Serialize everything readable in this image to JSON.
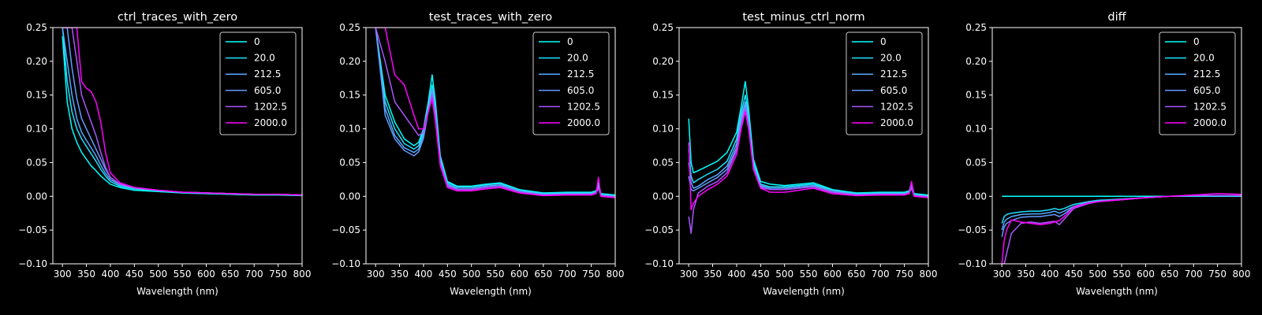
{
  "figure": {
    "background": "#000000",
    "foreground": "#ffffff"
  },
  "legend_labels": [
    "0",
    "20.0",
    "212.5",
    "605.0",
    "1202.5",
    "2000.0"
  ],
  "series_colors": [
    "#00ffff",
    "#1ee1ff",
    "#55aaff",
    "#6699ff",
    "#aa55ff",
    "#ff00ff"
  ],
  "chart_data": [
    {
      "type": "line",
      "title": "ctrl_traces_with_zero",
      "xlabel": "Wavelength (nm)",
      "ylabel": "",
      "xlim": [
        280,
        800
      ],
      "ylim": [
        -0.1,
        0.25
      ],
      "xticks": [
        300,
        350,
        400,
        450,
        500,
        550,
        600,
        650,
        700,
        750,
        800
      ],
      "yticks": [
        -0.1,
        -0.05,
        0.0,
        0.05,
        0.1,
        0.15,
        0.2,
        0.25
      ],
      "ytick_labels": [
        "−0.10",
        "−0.05",
        "0.00",
        "0.05",
        "0.10",
        "0.15",
        "0.20",
        "0.25"
      ],
      "legend": "top-right",
      "grid": false,
      "x": [
        300,
        310,
        320,
        330,
        340,
        350,
        360,
        370,
        380,
        390,
        400,
        420,
        450,
        500,
        550,
        600,
        650,
        700,
        750,
        800
      ],
      "series": [
        {
          "name": "0",
          "values": [
            0.237,
            0.14,
            0.1,
            0.08,
            0.065,
            0.055,
            0.045,
            0.038,
            0.03,
            0.024,
            0.018,
            0.013,
            0.009,
            0.007,
            0.005,
            0.004,
            0.003,
            0.002,
            0.002,
            0.001
          ]
        },
        {
          "name": "20.0",
          "values": [
            0.25,
            0.17,
            0.125,
            0.1,
            0.085,
            0.074,
            0.063,
            0.052,
            0.04,
            0.03,
            0.022,
            0.015,
            0.011,
            0.008,
            0.006,
            0.005,
            0.004,
            0.003,
            0.003,
            0.002
          ]
        },
        {
          "name": "212.5",
          "values": [
            0.25,
            0.2,
            0.15,
            0.115,
            0.095,
            0.083,
            0.072,
            0.06,
            0.046,
            0.034,
            0.025,
            0.017,
            0.012,
            0.009,
            0.006,
            0.005,
            0.004,
            0.003,
            0.003,
            0.002
          ]
        },
        {
          "name": "605.0",
          "values": [
            0.25,
            0.25,
            0.19,
            0.145,
            0.115,
            0.1,
            0.085,
            0.07,
            0.055,
            0.04,
            0.028,
            0.018,
            0.013,
            0.009,
            0.006,
            0.005,
            0.004,
            0.003,
            0.003,
            0.002
          ]
        },
        {
          "name": "1202.5",
          "values": [
            0.25,
            0.25,
            0.25,
            0.2,
            0.15,
            0.13,
            0.11,
            0.09,
            0.065,
            0.043,
            0.028,
            0.018,
            0.013,
            0.009,
            0.006,
            0.005,
            0.004,
            0.003,
            0.003,
            0.002
          ]
        },
        {
          "name": "2000.0",
          "values": [
            0.25,
            0.25,
            0.25,
            0.25,
            0.17,
            0.16,
            0.155,
            0.14,
            0.11,
            0.065,
            0.035,
            0.02,
            0.013,
            0.009,
            0.006,
            0.005,
            0.004,
            0.003,
            0.003,
            0.002
          ]
        }
      ]
    },
    {
      "type": "line",
      "title": "test_traces_with_zero",
      "xlabel": "Wavelength (nm)",
      "ylabel": "",
      "xlim": [
        280,
        800
      ],
      "ylim": [
        -0.1,
        0.25
      ],
      "xticks": [
        300,
        350,
        400,
        450,
        500,
        550,
        600,
        650,
        700,
        750,
        800
      ],
      "yticks": [
        -0.1,
        -0.05,
        0.0,
        0.05,
        0.1,
        0.15,
        0.2,
        0.25
      ],
      "ytick_labels": [
        "−0.10",
        "−0.05",
        "0.00",
        "0.05",
        "0.10",
        "0.15",
        "0.20",
        "0.25"
      ],
      "legend": "top-right",
      "grid": false,
      "x": [
        300,
        320,
        340,
        360,
        380,
        390,
        400,
        410,
        418,
        425,
        435,
        450,
        470,
        500,
        530,
        560,
        600,
        650,
        700,
        750,
        760,
        765,
        770,
        800
      ],
      "series": [
        {
          "name": "0",
          "values": [
            0.25,
            0.15,
            0.11,
            0.085,
            0.075,
            0.08,
            0.1,
            0.14,
            0.18,
            0.14,
            0.06,
            0.022,
            0.015,
            0.015,
            0.018,
            0.02,
            0.01,
            0.005,
            0.006,
            0.006,
            0.008,
            0.02,
            0.004,
            0.002
          ]
        },
        {
          "name": "20.0",
          "values": [
            0.25,
            0.14,
            0.1,
            0.078,
            0.07,
            0.075,
            0.095,
            0.135,
            0.165,
            0.13,
            0.055,
            0.02,
            0.014,
            0.014,
            0.017,
            0.019,
            0.009,
            0.004,
            0.005,
            0.005,
            0.007,
            0.018,
            0.003,
            0.001
          ]
        },
        {
          "name": "212.5",
          "values": [
            0.25,
            0.13,
            0.09,
            0.072,
            0.065,
            0.07,
            0.09,
            0.13,
            0.16,
            0.125,
            0.052,
            0.018,
            0.012,
            0.012,
            0.015,
            0.017,
            0.008,
            0.003,
            0.004,
            0.004,
            0.006,
            0.015,
            0.002,
            0.0
          ]
        },
        {
          "name": "605.0",
          "values": [
            0.25,
            0.12,
            0.085,
            0.068,
            0.06,
            0.066,
            0.086,
            0.126,
            0.155,
            0.12,
            0.05,
            0.016,
            0.01,
            0.01,
            0.013,
            0.015,
            0.006,
            0.002,
            0.003,
            0.003,
            0.005,
            0.012,
            0.001,
            -0.001
          ]
        },
        {
          "name": "1202.5",
          "values": [
            0.25,
            0.2,
            0.14,
            0.12,
            0.1,
            0.09,
            0.095,
            0.125,
            0.15,
            0.115,
            0.048,
            0.015,
            0.01,
            0.01,
            0.013,
            0.015,
            0.006,
            0.002,
            0.003,
            0.003,
            0.005,
            0.012,
            0.001,
            -0.001
          ]
        },
        {
          "name": "2000.0",
          "values": [
            0.25,
            0.25,
            0.18,
            0.165,
            0.12,
            0.1,
            0.1,
            0.125,
            0.145,
            0.11,
            0.045,
            0.013,
            0.008,
            0.008,
            0.011,
            0.013,
            0.005,
            0.001,
            0.002,
            0.002,
            0.004,
            0.028,
            0.0,
            -0.002
          ]
        }
      ]
    },
    {
      "type": "line",
      "title": "test_minus_ctrl_norm",
      "xlabel": "Wavelength (nm)",
      "ylabel": "",
      "xlim": [
        280,
        800
      ],
      "ylim": [
        -0.1,
        0.25
      ],
      "xticks": [
        300,
        350,
        400,
        450,
        500,
        550,
        600,
        650,
        700,
        750,
        800
      ],
      "yticks": [
        -0.1,
        -0.05,
        0.0,
        0.05,
        0.1,
        0.15,
        0.2,
        0.25
      ],
      "ytick_labels": [
        "−0.10",
        "−0.05",
        "0.00",
        "0.05",
        "0.10",
        "0.15",
        "0.20",
        "0.25"
      ],
      "legend": "top-right",
      "grid": false,
      "x": [
        300,
        305,
        310,
        320,
        340,
        360,
        380,
        400,
        410,
        418,
        425,
        435,
        450,
        470,
        500,
        530,
        560,
        600,
        650,
        700,
        750,
        760,
        765,
        770,
        800
      ],
      "series": [
        {
          "name": "0",
          "values": [
            0.115,
            0.05,
            0.035,
            0.038,
            0.045,
            0.052,
            0.065,
            0.095,
            0.135,
            0.17,
            0.13,
            0.055,
            0.022,
            0.018,
            0.016,
            0.018,
            0.02,
            0.01,
            0.005,
            0.006,
            0.006,
            0.008,
            0.02,
            0.004,
            0.002
          ]
        },
        {
          "name": "20.0",
          "values": [
            0.07,
            0.03,
            0.02,
            0.025,
            0.033,
            0.04,
            0.052,
            0.085,
            0.125,
            0.15,
            0.12,
            0.05,
            0.018,
            0.014,
            0.014,
            0.016,
            0.018,
            0.009,
            0.004,
            0.005,
            0.005,
            0.007,
            0.018,
            0.003,
            0.001
          ]
        },
        {
          "name": "212.5",
          "values": [
            0.05,
            0.02,
            0.012,
            0.015,
            0.025,
            0.032,
            0.045,
            0.078,
            0.118,
            0.14,
            0.112,
            0.046,
            0.016,
            0.012,
            0.012,
            0.014,
            0.016,
            0.008,
            0.003,
            0.004,
            0.004,
            0.006,
            0.015,
            0.002,
            0.0
          ]
        },
        {
          "name": "605.0",
          "values": [
            0.03,
            0.01,
            0.008,
            0.012,
            0.02,
            0.028,
            0.04,
            0.072,
            0.112,
            0.135,
            0.108,
            0.044,
            0.014,
            0.01,
            0.01,
            0.012,
            0.014,
            0.006,
            0.002,
            0.003,
            0.003,
            0.005,
            0.012,
            0.001,
            -0.001
          ]
        },
        {
          "name": "1202.5",
          "values": [
            -0.03,
            -0.055,
            -0.02,
            0.005,
            0.015,
            0.022,
            0.035,
            0.068,
            0.108,
            0.13,
            0.104,
            0.042,
            0.013,
            0.01,
            0.01,
            0.012,
            0.014,
            0.006,
            0.002,
            0.003,
            0.003,
            0.005,
            0.012,
            0.001,
            -0.001
          ]
        },
        {
          "name": "2000.0",
          "values": [
            0.08,
            -0.02,
            -0.01,
            0.0,
            0.01,
            0.018,
            0.03,
            0.062,
            0.102,
            0.125,
            0.1,
            0.04,
            0.012,
            0.006,
            0.006,
            0.009,
            0.012,
            0.004,
            0.001,
            0.002,
            0.002,
            0.004,
            0.022,
            0.0,
            -0.002
          ]
        }
      ]
    },
    {
      "type": "line",
      "title": "diff",
      "xlabel": "Wavelength (nm)",
      "ylabel": "",
      "xlim": [
        280,
        800
      ],
      "ylim": [
        -0.1,
        0.25
      ],
      "xticks": [
        300,
        350,
        400,
        450,
        500,
        550,
        600,
        650,
        700,
        750,
        800
      ],
      "yticks": [
        -0.1,
        -0.05,
        0.0,
        0.05,
        0.1,
        0.15,
        0.2,
        0.25
      ],
      "ytick_labels": [
        "−0.10",
        "−0.05",
        "0.00",
        "0.05",
        "0.10",
        "0.15",
        "0.20",
        "0.25"
      ],
      "legend": "top-right",
      "grid": false,
      "x": [
        300,
        305,
        310,
        320,
        340,
        360,
        380,
        400,
        410,
        420,
        430,
        450,
        480,
        500,
        550,
        600,
        650,
        700,
        750,
        800
      ],
      "series": [
        {
          "name": "0",
          "values": [
            0,
            0,
            0,
            0,
            0,
            0,
            0,
            0,
            0,
            0,
            0,
            0,
            0,
            0,
            0,
            0,
            0,
            0,
            0,
            0
          ]
        },
        {
          "name": "20.0",
          "values": [
            -0.04,
            -0.03,
            -0.027,
            -0.025,
            -0.023,
            -0.022,
            -0.022,
            -0.02,
            -0.018,
            -0.02,
            -0.018,
            -0.012,
            -0.008,
            -0.006,
            -0.004,
            -0.002,
            0.0,
            0.001,
            0.001,
            0.001
          ]
        },
        {
          "name": "212.5",
          "values": [
            -0.05,
            -0.038,
            -0.034,
            -0.03,
            -0.027,
            -0.026,
            -0.026,
            -0.024,
            -0.022,
            -0.025,
            -0.022,
            -0.015,
            -0.009,
            -0.007,
            -0.004,
            -0.002,
            0.0,
            0.001,
            0.001,
            0.001
          ]
        },
        {
          "name": "605.0",
          "values": [
            -0.06,
            -0.045,
            -0.04,
            -0.036,
            -0.031,
            -0.03,
            -0.03,
            -0.028,
            -0.027,
            -0.03,
            -0.026,
            -0.016,
            -0.01,
            -0.008,
            -0.005,
            -0.002,
            0.0,
            0.001,
            0.001,
            0.001
          ]
        },
        {
          "name": "1202.5",
          "values": [
            -0.1,
            -0.1,
            -0.085,
            -0.055,
            -0.04,
            -0.038,
            -0.04,
            -0.038,
            -0.037,
            -0.042,
            -0.034,
            -0.018,
            -0.011,
            -0.008,
            -0.005,
            -0.002,
            0.0,
            0.001,
            0.001,
            0.001
          ]
        },
        {
          "name": "2000.0",
          "values": [
            -0.1,
            -0.065,
            -0.05,
            -0.035,
            -0.038,
            -0.04,
            -0.042,
            -0.04,
            -0.038,
            -0.036,
            -0.03,
            -0.016,
            -0.01,
            -0.008,
            -0.005,
            -0.002,
            0.0,
            0.002,
            0.004,
            0.003
          ]
        }
      ]
    }
  ]
}
